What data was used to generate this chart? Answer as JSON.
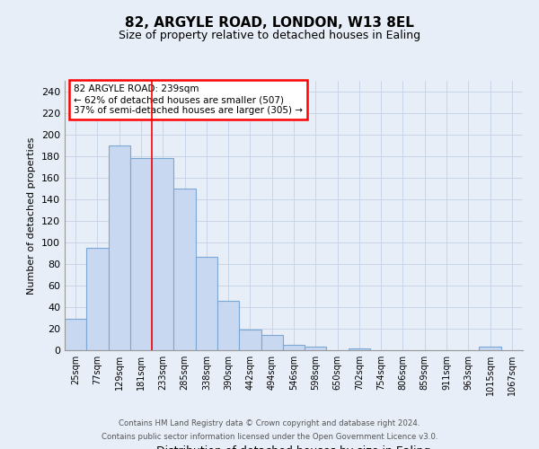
{
  "title1": "82, ARGYLE ROAD, LONDON, W13 8EL",
  "title2": "Size of property relative to detached houses in Ealing",
  "xlabel": "Distribution of detached houses by size in Ealing",
  "ylabel": "Number of detached properties",
  "categories": [
    "25sqm",
    "77sqm",
    "129sqm",
    "181sqm",
    "233sqm",
    "285sqm",
    "338sqm",
    "390sqm",
    "442sqm",
    "494sqm",
    "546sqm",
    "598sqm",
    "650sqm",
    "702sqm",
    "754sqm",
    "806sqm",
    "859sqm",
    "911sqm",
    "963sqm",
    "1015sqm",
    "1067sqm"
  ],
  "values": [
    29,
    95,
    190,
    178,
    178,
    150,
    87,
    46,
    19,
    14,
    5,
    3,
    0,
    2,
    0,
    0,
    0,
    0,
    0,
    3,
    0
  ],
  "bar_color": "#c8d8f0",
  "bar_edge_color": "#7ba7d4",
  "grid_color": "#c8d4e8",
  "background_color": "#e8eef8",
  "red_line_index": 4,
  "annotation_text": "82 ARGYLE ROAD: 239sqm\n← 62% of detached houses are smaller (507)\n37% of semi-detached houses are larger (305) →",
  "annotation_box_color": "white",
  "annotation_box_edge_color": "red",
  "footer1": "Contains HM Land Registry data © Crown copyright and database right 2024.",
  "footer2": "Contains public sector information licensed under the Open Government Licence v3.0.",
  "ylim": [
    0,
    250
  ],
  "yticks": [
    0,
    20,
    40,
    60,
    80,
    100,
    120,
    140,
    160,
    180,
    200,
    220,
    240
  ],
  "title1_fontsize": 11,
  "title2_fontsize": 9,
  "xlabel_fontsize": 9,
  "ylabel_fontsize": 8,
  "tick_fontsize": 7
}
